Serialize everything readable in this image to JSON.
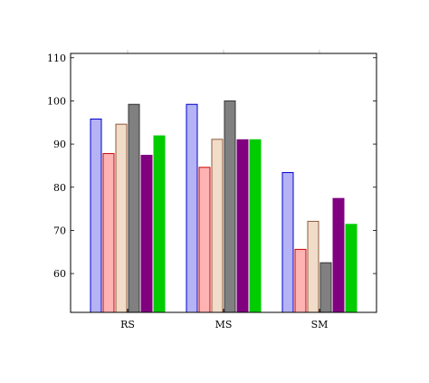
{
  "chart_data": {
    "type": "bar",
    "title": "",
    "xlabel": "",
    "ylabel": "",
    "categories": [
      "RS",
      "MS",
      "SM"
    ],
    "ylim": [
      51,
      111
    ],
    "yticks": [
      60,
      70,
      80,
      90,
      100,
      110
    ],
    "grid": false,
    "legend": "none",
    "series": [
      {
        "values": [
          95.8,
          99.2,
          83.4
        ],
        "fill": "#b3b3f5",
        "stroke": "#0000cc"
      },
      {
        "values": [
          87.8,
          84.6,
          65.6
        ],
        "fill": "#ffb3b3",
        "stroke": "#cc0000"
      },
      {
        "values": [
          94.6,
          91.1,
          72.1
        ],
        "fill": "#f0dcc8",
        "stroke": "#8b5a3c"
      },
      {
        "values": [
          99.2,
          100.0,
          62.5
        ],
        "fill": "#808080",
        "stroke": "#333333"
      },
      {
        "values": [
          87.4,
          91.0,
          77.4
        ],
        "fill": "#800080",
        "stroke": "#800080"
      },
      {
        "values": [
          91.9,
          91.0,
          71.4
        ],
        "fill": "#00cc00",
        "stroke": "#00cc00"
      }
    ]
  }
}
